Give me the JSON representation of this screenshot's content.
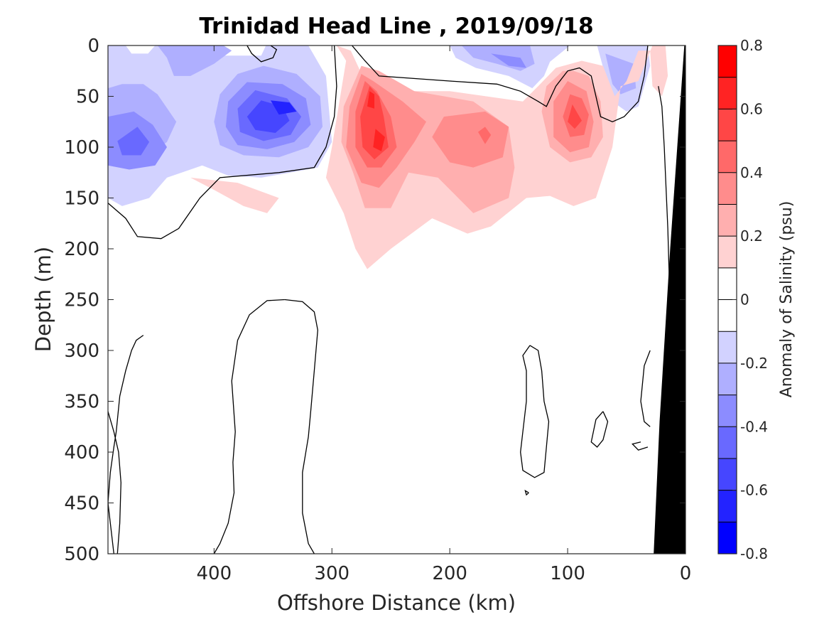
{
  "chart_data": {
    "type": "heatmap",
    "subtype": "filled-contour-section",
    "title": "Trinidad Head Line , 2019/09/18",
    "xlabel": "Offshore Distance (km)",
    "ylabel": "Depth (m)",
    "xlim": [
      490,
      0
    ],
    "ylim": [
      0,
      500
    ],
    "x_reversed": true,
    "y_reversed": true,
    "x_ticks": [
      400,
      300,
      200,
      100,
      0
    ],
    "y_ticks": [
      0,
      50,
      100,
      150,
      200,
      250,
      300,
      350,
      400,
      450,
      500
    ],
    "colorbar": {
      "label": "Anomaly of Salinity (psu)",
      "range": [
        -0.8,
        0.8
      ],
      "step": 0.1,
      "ticks": [
        "0.8",
        "0.6",
        "0.4",
        "0.2",
        "0",
        "-0.2",
        "-0.4",
        "-0.6",
        "-0.8"
      ],
      "colors_top_to_bottom": [
        "#ff0000",
        "#ff2323",
        "#ff4646",
        "#ff6969",
        "#ff8c8c",
        "#ffafaf",
        "#ffd2d2",
        "#ffffff",
        "#ffffff",
        "#d2d2ff",
        "#afafff",
        "#8c8cff",
        "#6969ff",
        "#4646ff",
        "#2323ff",
        "#0000ff"
      ]
    },
    "features": [
      {
        "name": "shallow positive anomaly core",
        "x_range": [
          300,
          30
        ],
        "depth_range": [
          0,
          220
        ],
        "max_value": 0.7,
        "max_at": {
          "x": 260,
          "depth": 90
        }
      },
      {
        "name": "secondary positive anomaly",
        "x_range": [
          120,
          60
        ],
        "depth_range": [
          20,
          160
        ],
        "max_value": 0.5,
        "max_at": {
          "x": 92,
          "depth": 70
        }
      },
      {
        "name": "negative anomaly core",
        "x_range": [
          490,
          310
        ],
        "depth_range": [
          0,
          190
        ],
        "min_value": -0.6,
        "min_at": {
          "x": 345,
          "depth": 60
        }
      },
      {
        "name": "negative anomaly surface patches",
        "x_range": [
          200,
          30
        ],
        "depth_range": [
          0,
          110
        ],
        "min_value": -0.3
      }
    ],
    "bathymetry_color": "#000000"
  }
}
